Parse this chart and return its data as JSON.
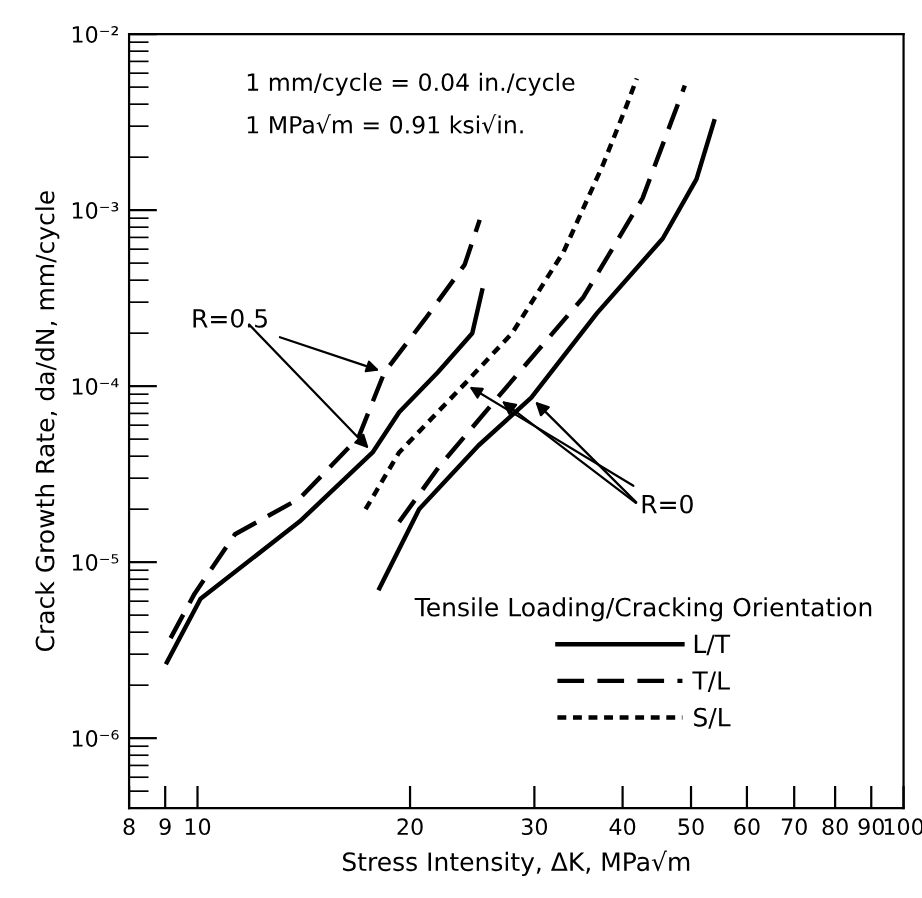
{
  "chart_data": {
    "type": "line",
    "xlabel": "Stress Intensity, ΔK, MPa√m",
    "ylabel": "Crack Growth Rate, da/dN, mm/cycle",
    "legend_title": "Tensile Loading/Cracking Orientation",
    "log": "xy",
    "xlim": [
      8,
      100
    ],
    "ylim": [
      4e-07,
      0.01
    ],
    "xticks": [
      8,
      9,
      10,
      20,
      30,
      40,
      50,
      60,
      70,
      80,
      90,
      100
    ],
    "yticks": [
      {
        "value": 1e-06,
        "label": "10⁻⁶"
      },
      {
        "value": 1e-05,
        "label": "10⁻⁵"
      },
      {
        "value": 0.0001,
        "label": "10⁻⁴"
      },
      {
        "value": 0.001,
        "label": "10⁻³"
      },
      {
        "value": 0.01,
        "label": "10⁻²"
      }
    ],
    "grid": false,
    "legend": "bottom right",
    "marker": "none",
    "series": [
      {
        "name": "L/T",
        "color": "#000000",
        "line_style": "solid",
        "x": [
          9.05,
          10.1,
          13.95,
          17.7,
          19.3,
          21.9,
          24.5,
          25.3
        ],
        "values": [
          2.7e-06,
          6.2e-06,
          1.7e-05,
          4.2e-05,
          7.1e-05,
          0.00012,
          0.0002,
          0.00035
        ]
      },
      {
        "name": "T/L",
        "color": "#000000",
        "line_style": "dashed",
        "x": [
          9.16,
          9.9,
          11.3,
          13.95,
          16.9,
          18.4,
          21.0,
          23.9,
          25.1
        ],
        "values": [
          3.7e-06,
          6.6e-06,
          1.44e-05,
          2.3e-05,
          5.1e-05,
          0.00012,
          0.00024,
          0.00049,
          0.00088
        ]
      },
      {
        "name": "S/L",
        "color": "#000000",
        "line_style": "dotted",
        "x": [
          17.3,
          19.3,
          23.9,
          27.9,
          33,
          37.5,
          40.6,
          41.9
        ],
        "values": [
          2e-05,
          4.2e-05,
          0.000103,
          0.0002,
          0.00058,
          0.0018,
          0.004,
          0.0056
        ]
      },
      {
        "color": "#000000",
        "line_style": "dashed",
        "x": [
          19.3,
          22,
          26.6,
          35.2,
          42.7,
          49
        ],
        "values": [
          1.69e-05,
          3.5e-05,
          8.6e-05,
          0.00032,
          0.00117,
          0.0051
        ]
      },
      {
        "color": "#000000",
        "line_style": "solid",
        "x": [
          18.1,
          20.6,
          25,
          29.7,
          36.8,
          45.6,
          50.9,
          53.9
        ],
        "values": [
          7.1e-06,
          2e-05,
          4.6e-05,
          8.6e-05,
          0.00026,
          0.00069,
          0.0015,
          0.0032
        ]
      }
    ],
    "annotations": [
      "1 mm/cycle = 0.04 in./cycle",
      "1 MPa√m = 0.91 ksi√in.",
      {
        "text": "R=0.5",
        "x": 18.4,
        "y": 0.00012
      },
      {
        "text": "R=0",
        "x": 23.9,
        "y": 0.000103
      }
    ]
  }
}
